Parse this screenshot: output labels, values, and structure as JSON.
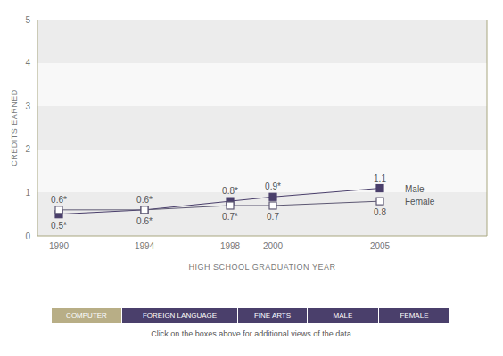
{
  "chart_data": {
    "type": "line",
    "x_label": "HIGH SCHOOL GRADUATION YEAR",
    "y_label": "CREDITS EARNED",
    "x": [
      1990,
      1994,
      1998,
      2000,
      2005
    ],
    "series": [
      {
        "name": "Male",
        "color": "#4a3f6b",
        "marker": "square",
        "values": [
          0.5,
          0.6,
          0.8,
          0.9,
          1.1
        ],
        "value_labels": [
          "0.5*",
          "0.6*",
          "0.8*",
          "0.9*",
          "1.1"
        ]
      },
      {
        "name": "Female",
        "color": "#5d5873",
        "marker": "open_square",
        "values": [
          0.6,
          0.6,
          0.7,
          0.7,
          0.8
        ],
        "value_labels": [
          "0.6*",
          "0.6*",
          "0.7*",
          "0.7",
          "0.8"
        ]
      }
    ],
    "xlim": [
      1989,
      2010
    ],
    "xticks": [
      1990,
      1994,
      1998,
      2000,
      2005
    ],
    "ylim": [
      0,
      5
    ],
    "yticks": [
      0,
      1,
      2,
      3,
      4,
      5
    ],
    "grid": true,
    "data_labels": true,
    "buttons": [
      "COMPUTER",
      "FOREIGN LANGUAGE",
      "FINE ARTS",
      "MALE",
      "FEMALE"
    ],
    "note": "Click on the boxes above for additional views of the data"
  }
}
